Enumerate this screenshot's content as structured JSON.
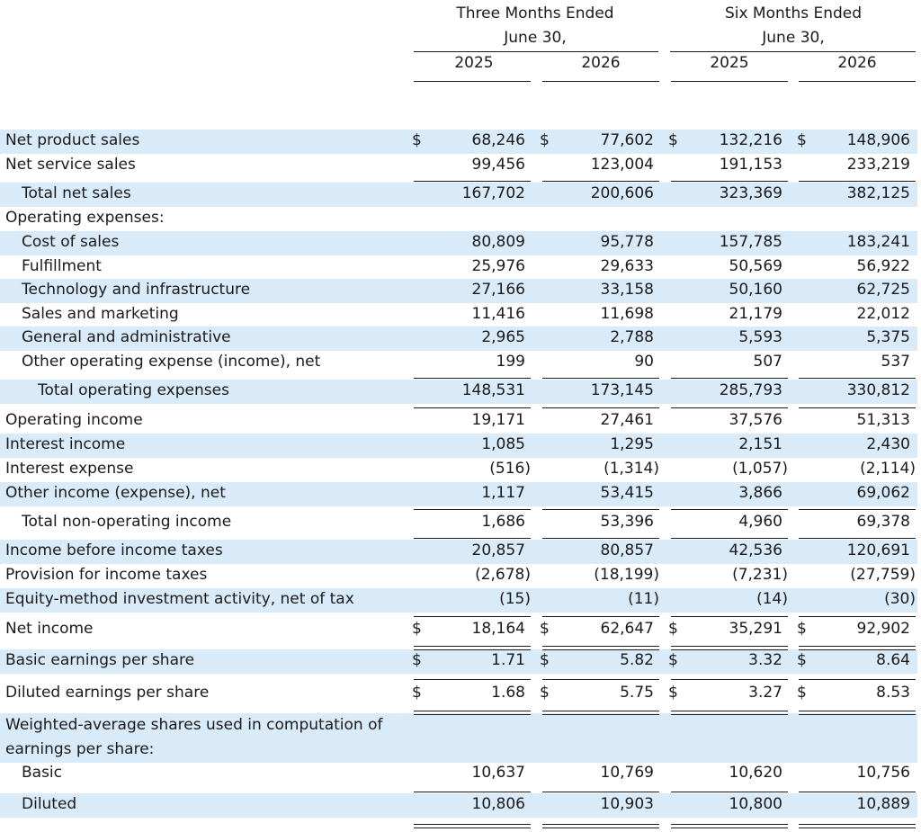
{
  "header": {
    "group1": [
      "Three Months Ended",
      "June 30,"
    ],
    "group2": [
      "Six Months Ended",
      "June 30,"
    ],
    "years": [
      "2025",
      "2026",
      "2025",
      "2026"
    ]
  },
  "currency_symbol": "$",
  "band_color": "#d9eaf8",
  "rows": [
    {
      "label": "Net product sales",
      "values": [
        "68,246",
        "77,602",
        "132,216",
        "148,906"
      ]
    },
    {
      "label": "Net service sales",
      "values": [
        "99,456",
        "123,004",
        "191,153",
        "233,219"
      ]
    },
    {
      "label": "Total net sales",
      "values": [
        "167,702",
        "200,606",
        "323,369",
        "382,125"
      ]
    },
    {
      "label": "Operating expenses:",
      "values": [
        "",
        "",
        "",
        ""
      ]
    },
    {
      "label": "Cost of sales",
      "values": [
        "80,809",
        "95,778",
        "157,785",
        "183,241"
      ]
    },
    {
      "label": "Fulfillment",
      "values": [
        "25,976",
        "29,633",
        "50,569",
        "56,922"
      ]
    },
    {
      "label": "Technology and infrastructure",
      "values": [
        "27,166",
        "33,158",
        "50,160",
        "62,725"
      ]
    },
    {
      "label": "Sales and marketing",
      "values": [
        "11,416",
        "11,698",
        "21,179",
        "22,012"
      ]
    },
    {
      "label": "General and administrative",
      "values": [
        "2,965",
        "2,788",
        "5,593",
        "5,375"
      ]
    },
    {
      "label": "Other operating expense (income), net",
      "values": [
        "199",
        "90",
        "507",
        "537"
      ]
    },
    {
      "label": "Total operating expenses",
      "values": [
        "148,531",
        "173,145",
        "285,793",
        "330,812"
      ]
    },
    {
      "label": "Operating income",
      "values": [
        "19,171",
        "27,461",
        "37,576",
        "51,313"
      ]
    },
    {
      "label": "Interest income",
      "values": [
        "1,085",
        "1,295",
        "2,151",
        "2,430"
      ]
    },
    {
      "label": "Interest expense",
      "values": [
        "(516)",
        "(1,314)",
        "(1,057)",
        "(2,114)"
      ]
    },
    {
      "label": "Other income (expense), net",
      "values": [
        "1,117",
        "53,415",
        "3,866",
        "69,062"
      ]
    },
    {
      "label": "Total non-operating income",
      "values": [
        "1,686",
        "53,396",
        "4,960",
        "69,378"
      ]
    },
    {
      "label": "Income before income taxes",
      "values": [
        "20,857",
        "80,857",
        "42,536",
        "120,691"
      ]
    },
    {
      "label": "Provision for income taxes",
      "values": [
        "(2,678)",
        "(18,199)",
        "(7,231)",
        "(27,759)"
      ]
    },
    {
      "label": "Equity-method investment activity, net of tax",
      "values": [
        "(15)",
        "(11)",
        "(14)",
        "(30)"
      ]
    },
    {
      "label": "Net income",
      "values": [
        "18,164",
        "62,647",
        "35,291",
        "92,902"
      ]
    },
    {
      "label": "Basic earnings per share",
      "values": [
        "1.71",
        "5.82",
        "3.32",
        "8.64"
      ]
    },
    {
      "label": "Diluted earnings per share",
      "values": [
        "1.68",
        "5.75",
        "3.27",
        "8.53"
      ]
    },
    {
      "label": "Weighted-average shares used in computation of earnings per share:",
      "values": [
        "",
        "",
        "",
        ""
      ]
    },
    {
      "label": "Basic",
      "values": [
        "10,637",
        "10,769",
        "10,620",
        "10,756"
      ]
    },
    {
      "label": "Diluted",
      "values": [
        "10,806",
        "10,903",
        "10,800",
        "10,889"
      ]
    }
  ]
}
